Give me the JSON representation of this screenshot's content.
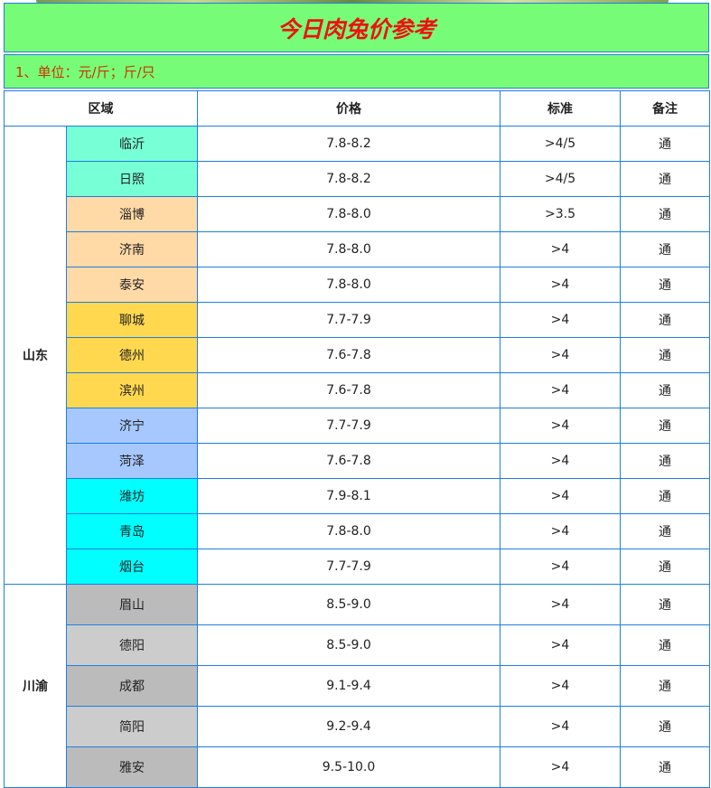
{
  "title": "今日肉兔价参考",
  "subtitle": "1、单位：元/斤；斤/只",
  "headers": [
    "区域",
    "价格",
    "标准",
    "备注"
  ],
  "groups": [
    {
      "province": "山东",
      "rows": [
        {
          "city": "临沂",
          "price": "7.8-8.2",
          "standard": ">4/5",
          "note": "通",
          "color": "#77ffd6"
        },
        {
          "city": "日照",
          "price": "7.8-8.2",
          "standard": ">4/5",
          "note": "通",
          "color": "#77ffd6"
        },
        {
          "city": "淄博",
          "price": "7.8-8.0",
          "standard": ">3.5",
          "note": "通",
          "color": "#ffd9a6"
        },
        {
          "city": "济南",
          "price": "7.8-8.0",
          "standard": ">4",
          "note": "通",
          "color": "#ffd9a6"
        },
        {
          "city": "泰安",
          "price": "7.8-8.0",
          "standard": ">4",
          "note": "通",
          "color": "#ffd9a6"
        },
        {
          "city": "聊城",
          "price": "7.7-7.9",
          "standard": ">4",
          "note": "通",
          "color": "#ffd84f"
        },
        {
          "city": "德州",
          "price": "7.6-7.8",
          "standard": ">4",
          "note": "通",
          "color": "#ffd84f"
        },
        {
          "city": "滨州",
          "price": "7.6-7.8",
          "standard": ">4",
          "note": "通",
          "color": "#ffd84f"
        },
        {
          "city": "济宁",
          "price": "7.7-7.9",
          "standard": ">4",
          "note": "通",
          "color": "#a6c8ff"
        },
        {
          "city": "菏泽",
          "price": "7.6-7.8",
          "standard": ">4",
          "note": "通",
          "color": "#a6c8ff"
        },
        {
          "city": "潍坊",
          "price": "7.9-8.1",
          "standard": ">4",
          "note": "通",
          "color": "#00ffff"
        },
        {
          "city": "青岛",
          "price": "7.8-8.0",
          "standard": ">4",
          "note": "通",
          "color": "#00ffff"
        },
        {
          "city": "烟台",
          "price": "7.7-7.9",
          "standard": ">4",
          "note": "通",
          "color": "#00ffff"
        }
      ]
    },
    {
      "province": "川渝",
      "rows": [
        {
          "city": "眉山",
          "price": "8.5-9.0",
          "standard": ">4",
          "note": "通",
          "color": "#bbbbbb"
        },
        {
          "city": "德阳",
          "price": "8.5-9.0",
          "standard": ">4",
          "note": "通",
          "color": "#cccccc"
        },
        {
          "city": "成都",
          "price": "9.1-9.4",
          "standard": ">4",
          "note": "通",
          "color": "#bbbbbb"
        },
        {
          "city": "简阳",
          "price": "9.2-9.4",
          "standard": ">4",
          "note": "通",
          "color": "#cccccc"
        },
        {
          "city": "雅安",
          "price": "9.5-10.0",
          "standard": ">4",
          "note": "通",
          "color": "#bbbbbb"
        }
      ]
    }
  ]
}
